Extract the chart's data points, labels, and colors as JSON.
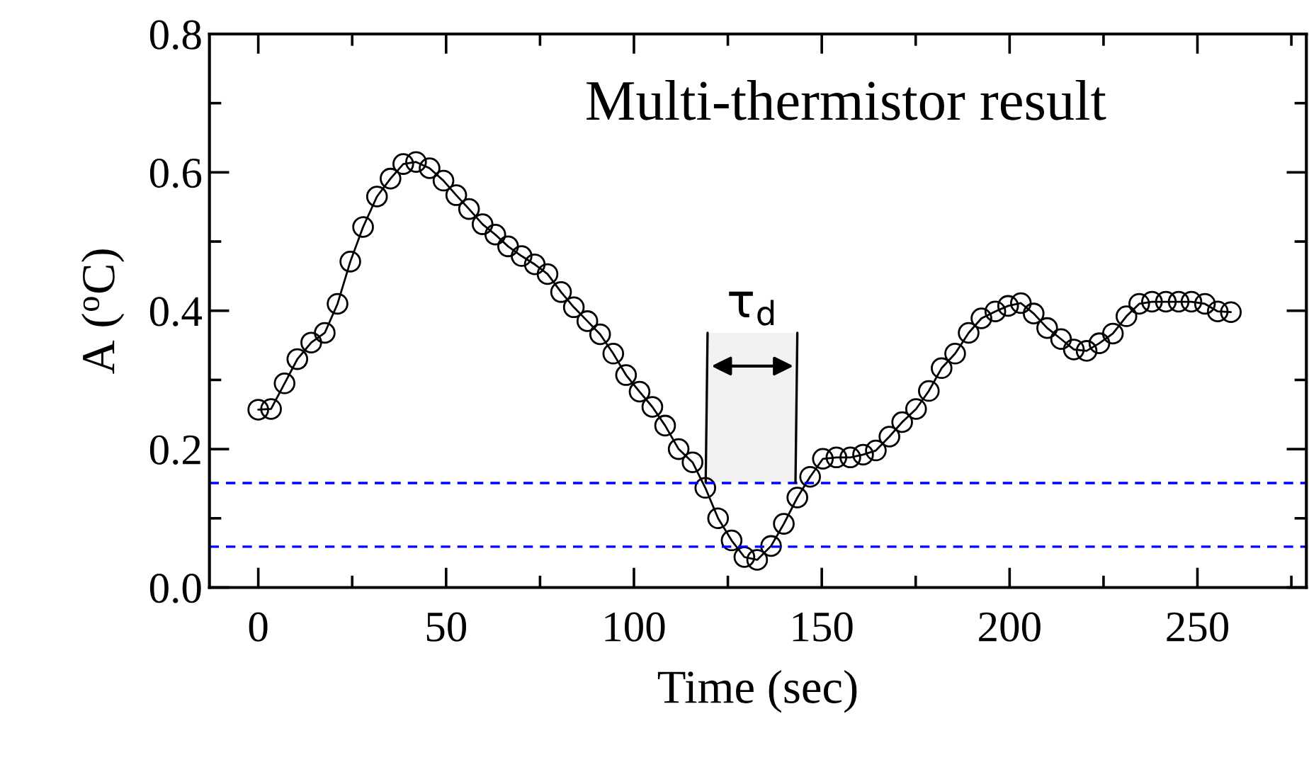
{
  "chart_data": {
    "type": "line",
    "title": "Multi-thermistor result",
    "xlabel": "Time (sec)",
    "ylabel": "A ($^{o}$C)",
    "x": [
      0,
      3.4,
      7.0,
      10.4,
      14.1,
      17.7,
      21.1,
      24.5,
      27.9,
      31.6,
      35.2,
      38.6,
      42.0,
      45.6,
      49.3,
      52.7,
      56.1,
      59.7,
      63.1,
      66.5,
      70.1,
      73.6,
      77.0,
      80.6,
      84.0,
      87.6,
      91.0,
      94.5,
      97.9,
      101.5,
      104.9,
      108.3,
      111.9,
      115.6,
      119.0,
      122.4,
      126.0,
      129.4,
      132.8,
      136.5,
      139.9,
      143.5,
      146.9,
      150.3,
      153.9,
      157.6,
      161.0,
      164.4,
      168.0,
      171.4,
      175.1,
      178.5,
      181.9,
      185.5,
      189.1,
      192.5,
      196.2,
      199.6,
      203.0,
      206.4,
      210.0,
      213.7,
      217.1,
      220.5,
      223.9,
      227.5,
      231.1,
      234.5,
      237.9,
      241.6,
      245.0,
      248.4,
      252.0,
      255.4,
      258.9
    ],
    "series": [
      {
        "color": "#000000",
        "values": [
          0.257,
          0.258,
          0.295,
          0.33,
          0.354,
          0.368,
          0.41,
          0.471,
          0.521,
          0.565,
          0.591,
          0.612,
          0.615,
          0.606,
          0.588,
          0.567,
          0.547,
          0.525,
          0.51,
          0.493,
          0.479,
          0.467,
          0.453,
          0.427,
          0.405,
          0.385,
          0.366,
          0.338,
          0.307,
          0.283,
          0.261,
          0.234,
          0.2,
          0.181,
          0.144,
          0.1,
          0.068,
          0.044,
          0.04,
          0.06,
          0.092,
          0.13,
          0.16,
          0.186,
          0.188,
          0.188,
          0.192,
          0.198,
          0.218,
          0.239,
          0.258,
          0.284,
          0.317,
          0.338,
          0.368,
          0.389,
          0.399,
          0.407,
          0.411,
          0.396,
          0.375,
          0.359,
          0.344,
          0.342,
          0.353,
          0.367,
          0.392,
          0.41,
          0.413,
          0.413,
          0.413,
          0.413,
          0.41,
          0.399,
          0.398
        ]
      }
    ],
    "marker": "circle",
    "line_style": "solid",
    "xlim": [
      -13,
      279
    ],
    "xticks": [
      0,
      50,
      100,
      150,
      200,
      250
    ],
    "ylim": [
      0,
      0.8
    ],
    "yticks": [
      {
        "value": 0,
        "label": "0.0"
      },
      0.2,
      0.4,
      0.6,
      0.8
    ],
    "ref_lines": [
      {
        "axis": "y",
        "value": 0.151,
        "color": "#0000ff",
        "line_style": "dashed"
      },
      {
        "axis": "y",
        "value": 0.059,
        "color": "#0000ff",
        "line_style": "dashed"
      }
    ],
    "bands": [
      {
        "axis": "x",
        "from": 119.6,
        "to": 143.5,
        "label": "τ$_{d}$",
        "color": "#000000"
      }
    ],
    "grid": false,
    "legend": false
  }
}
